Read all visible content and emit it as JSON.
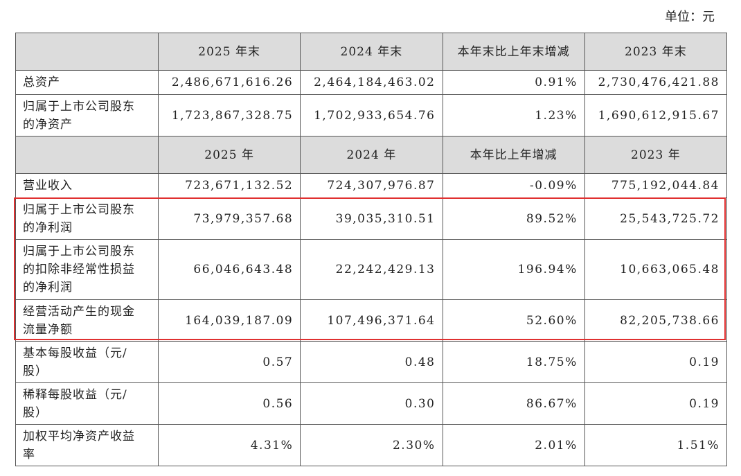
{
  "header": {
    "unit": "单位：元"
  },
  "table": {
    "sections": [
      {
        "columns": [
          "2025 年末",
          "2024 年末",
          "本年末比上年末增减",
          "2023 年末"
        ],
        "rows": [
          {
            "label": [
              "总资产"
            ],
            "cells": [
              "2,486,671,616.26",
              "2,464,184,463.02",
              "0.91%",
              "2,730,476,421.88"
            ]
          },
          {
            "label": [
              "归属于上市公司股东",
              "的净资产"
            ],
            "cells": [
              "1,723,867,328.75",
              "1,702,933,654.76",
              "1.23%",
              "1,690,612,915.67"
            ]
          }
        ]
      },
      {
        "columns": [
          "2025 年",
          "2024 年",
          "本年比上年增减",
          "2023 年"
        ],
        "rows": [
          {
            "label": [
              "营业收入"
            ],
            "cells": [
              "723,671,132.52",
              "724,307,976.87",
              "-0.09%",
              "775,192,044.84"
            ]
          },
          {
            "label": [
              "归属于上市公司股东",
              "的净利润"
            ],
            "cells": [
              "73,979,357.68",
              "39,035,310.51",
              "89.52%",
              "25,543,725.72"
            ]
          },
          {
            "label": [
              "归属于上市公司股东",
              "的扣除非经常性损益",
              "的净利润"
            ],
            "cells": [
              "66,046,643.48",
              "22,242,429.13",
              "196.94%",
              "10,663,065.48"
            ]
          },
          {
            "label": [
              "经营活动产生的现金",
              "流量净额"
            ],
            "cells": [
              "164,039,187.09",
              "107,496,371.64",
              "52.60%",
              "82,205,738.66"
            ]
          },
          {
            "label": [
              "基本每股收益（元/",
              "股）"
            ],
            "cells": [
              "0.57",
              "0.48",
              "18.75%",
              "0.19"
            ]
          },
          {
            "label": [
              "稀释每股收益（元/",
              "股）"
            ],
            "cells": [
              "0.56",
              "0.30",
              "86.67%",
              "0.19"
            ]
          },
          {
            "label": [
              "加权平均净资产收益",
              "率"
            ],
            "cells": [
              "4.31%",
              "2.30%",
              "2.01%",
              "1.51%"
            ]
          }
        ]
      }
    ]
  }
}
